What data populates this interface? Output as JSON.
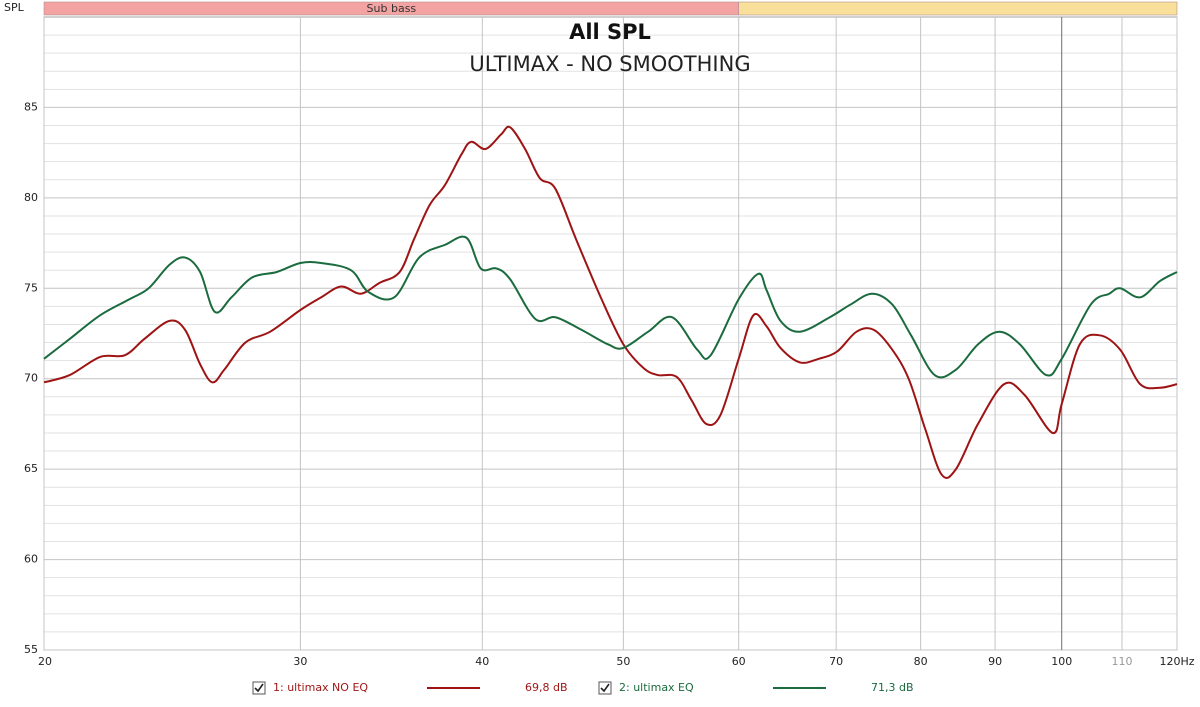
{
  "chart_data": {
    "type": "line",
    "title": "All SPL",
    "subtitle": "ULTIMAX - NO SMOOTHING",
    "y_axis_label": "SPL",
    "x_scale": "log",
    "xlim": [
      20,
      120
    ],
    "ylim": [
      55,
      90
    ],
    "xticks": [
      20,
      30,
      40,
      50,
      60,
      70,
      80,
      90,
      100,
      110,
      {
        "value": 120,
        "label": "120Hz"
      }
    ],
    "yticks": [
      55,
      60,
      65,
      70,
      75,
      80,
      85
    ],
    "y_minor_ticks": [
      56,
      57,
      58,
      59,
      61,
      62,
      63,
      64,
      66,
      67,
      68,
      69,
      71,
      72,
      73,
      74,
      76,
      77,
      78,
      79,
      81,
      82,
      83,
      84,
      86,
      87,
      88,
      89
    ],
    "grid": true,
    "bands": [
      {
        "label": "Sub bass",
        "from": 20,
        "to": 60,
        "color": "#f4a3a3"
      },
      {
        "label": null,
        "from": 60,
        "to": 120,
        "color": "#f9e09a"
      }
    ],
    "series": [
      {
        "name": "1: ultimax NO EQ",
        "color": "#9e1414",
        "legend_value": 69.8,
        "legend_value_label": "69,8 dB",
        "x": [
          20,
          20.83,
          21.85,
          22.73,
          23.44,
          24.39,
          25.0,
          25.6,
          26.1,
          26.6,
          27.5,
          28.6,
          30,
          31.0,
          32.0,
          33.0,
          34.0,
          35.1,
          35.9,
          36.8,
          37.7,
          38.7,
          39.3,
          40.2,
          41.2,
          41.8,
          42.8,
          43.8,
          44.9,
          46.4,
          48.3,
          50.0,
          51.6,
          52.8,
          54.4,
          55.7,
          57.0,
          58.3,
          60,
          61.4,
          62.7,
          64.1,
          66.1,
          68.1,
          70.1,
          72.3,
          74.3,
          76.5,
          78.5,
          80.6,
          82.7,
          84.6,
          87.6,
          91.3,
          94.3,
          98.6,
          100,
          102.9,
          106.2,
          109.7,
          113.2,
          116.8,
          120
        ],
        "values": [
          69.8,
          70.2,
          71.2,
          71.3,
          72.2,
          73.2,
          72.7,
          70.8,
          69.8,
          70.5,
          72.0,
          72.6,
          73.8,
          74.5,
          75.1,
          74.7,
          75.3,
          75.9,
          77.7,
          79.6,
          80.7,
          82.4,
          83.1,
          82.7,
          83.5,
          83.9,
          82.7,
          81.1,
          80.5,
          77.7,
          74.4,
          71.9,
          70.6,
          70.2,
          70.1,
          68.8,
          67.5,
          68.0,
          71.1,
          73.5,
          72.9,
          71.7,
          70.9,
          71.1,
          71.5,
          72.6,
          72.7,
          71.6,
          70.0,
          67.2,
          64.7,
          65.0,
          67.5,
          69.7,
          69.1,
          67.0,
          68.6,
          71.9,
          72.4,
          71.6,
          69.7,
          69.5,
          69.7
        ]
      },
      {
        "name": "2: ultimax EQ",
        "color": "#1b6b3e",
        "legend_value": 71.3,
        "legend_value_label": "71,3 dB",
        "x": [
          20,
          20.83,
          21.85,
          22.9,
          23.6,
          24.39,
          25.0,
          25.6,
          26.2,
          26.9,
          27.8,
          28.9,
          30,
          31.0,
          32.5,
          33.4,
          34.8,
          36.2,
          37.7,
          39.0,
          39.9,
          40.9,
          41.8,
          43.5,
          44.9,
          46.8,
          48.8,
          50.0,
          52.0,
          54.0,
          56.2,
          57.4,
          60,
          61.9,
          62.7,
          64.1,
          66.1,
          69.3,
          71.6,
          74.1,
          76.5,
          78.8,
          81.8,
          84.6,
          87.6,
          90.6,
          93.6,
          97.6,
          100,
          104.7,
          107.8,
          109.7,
          113.2,
          116.8,
          120
        ],
        "values": [
          71.1,
          72.2,
          73.5,
          74.4,
          75.0,
          76.3,
          76.7,
          75.9,
          73.7,
          74.5,
          75.6,
          75.9,
          76.4,
          76.4,
          76.0,
          74.8,
          74.5,
          76.7,
          77.4,
          77.8,
          76.1,
          76.1,
          75.5,
          73.3,
          73.4,
          72.7,
          71.9,
          71.7,
          72.6,
          73.4,
          71.6,
          71.3,
          74.4,
          75.8,
          74.9,
          73.2,
          72.6,
          73.4,
          74.1,
          74.7,
          74.1,
          72.4,
          70.2,
          70.5,
          71.9,
          72.6,
          71.9,
          70.2,
          71.1,
          74.1,
          74.7,
          75.0,
          74.5,
          75.4,
          75.9
        ]
      }
    ]
  }
}
